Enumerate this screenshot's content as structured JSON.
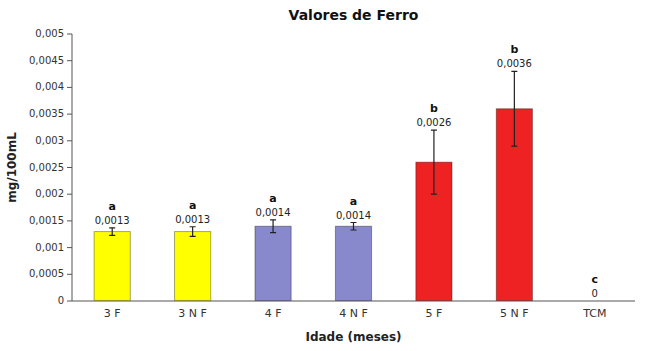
{
  "chart_data": {
    "type": "bar",
    "title": "Valores de Ferro",
    "xlabel": "Idade (meses)",
    "ylabel": "mg/100mL",
    "categories": [
      "3 F",
      "3 N F",
      "4 F",
      "4 N F",
      "5 F",
      "5 N F",
      "TCM"
    ],
    "values": [
      0.0013,
      0.0013,
      0.0014,
      0.0014,
      0.0026,
      0.0036,
      0.0
    ],
    "errors": [
      7e-05,
      9e-05,
      0.00012,
      7e-05,
      0.0006,
      0.0007,
      0.0
    ],
    "value_labels": [
      "0,0013",
      "0,0013",
      "0,0014",
      "0,0014",
      "0,0026",
      "0,0036",
      "0"
    ],
    "annotations": [
      "a",
      "a",
      "a",
      "a",
      "b",
      "b",
      "c"
    ],
    "data_labels": true,
    "colors": [
      "#FFFF00",
      "#FFFF00",
      "#8888CC",
      "#8888CC",
      "#EE2222",
      "#EE2222",
      "none"
    ],
    "ylim": [
      0,
      0.005
    ],
    "yticks": [
      0,
      {
        "value": 0.0005,
        "label": "0,0005"
      },
      {
        "value": 0.001,
        "label": "0,001"
      },
      {
        "value": 0.0015,
        "label": "0,0015"
      },
      {
        "value": 0.002,
        "label": "0,002"
      },
      {
        "value": 0.0025,
        "label": "0,0025"
      },
      {
        "value": 0.003,
        "label": "0,003"
      },
      {
        "value": 0.0035,
        "label": "0,0035"
      },
      {
        "value": 0.004,
        "label": "0,004"
      },
      {
        "value": 0.0045,
        "label": "0,0045"
      },
      {
        "value": 0.005,
        "label": "0,005"
      }
    ],
    "grid": false
  }
}
